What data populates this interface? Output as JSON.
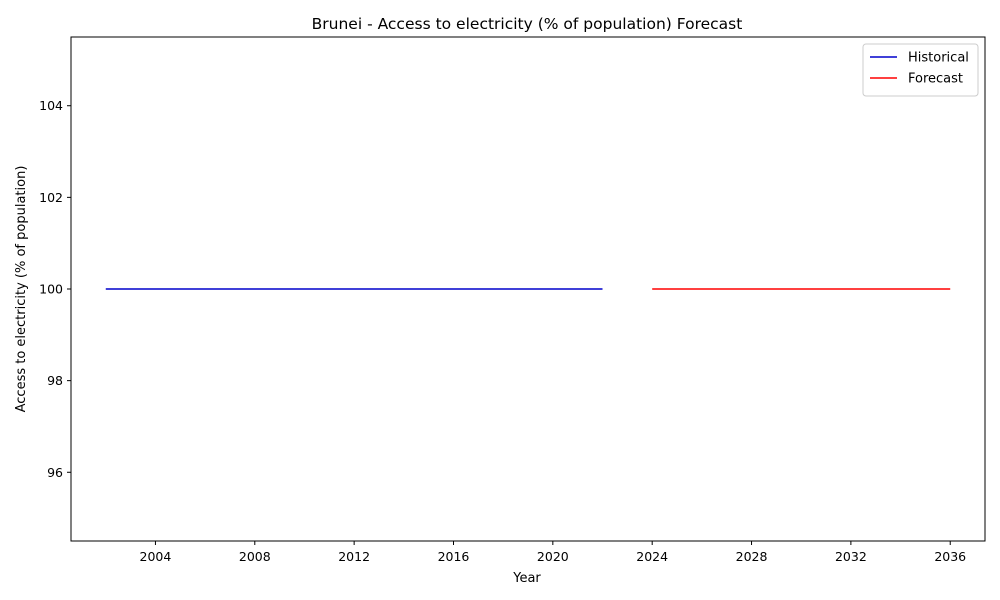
{
  "chart_data": {
    "type": "line",
    "title": "Brunei - Access to electricity (% of population) Forecast",
    "xlabel": "Year",
    "ylabel": "Access to electricity (% of population)",
    "xlim": [
      2000.6,
      2037.4
    ],
    "ylim": [
      94.5,
      105.5
    ],
    "xticks": [
      2004,
      2008,
      2012,
      2016,
      2020,
      2024,
      2028,
      2032,
      2036
    ],
    "yticks": [
      96,
      98,
      100,
      102,
      104
    ],
    "grid": false,
    "legend": "top-right",
    "series": [
      {
        "name": "Historical",
        "color": "#0000cc",
        "x": [
          2002,
          2003,
          2004,
          2005,
          2006,
          2007,
          2008,
          2009,
          2010,
          2011,
          2012,
          2013,
          2014,
          2015,
          2016,
          2017,
          2018,
          2019,
          2020,
          2021,
          2022
        ],
        "y": [
          100,
          100,
          100,
          100,
          100,
          100,
          100,
          100,
          100,
          100,
          100,
          100,
          100,
          100,
          100,
          100,
          100,
          100,
          100,
          100,
          100
        ]
      },
      {
        "name": "Forecast",
        "color": "#ff0000",
        "x": [
          2024,
          2025,
          2026,
          2027,
          2028,
          2029,
          2030,
          2031,
          2032,
          2033,
          2034,
          2035,
          2036
        ],
        "y": [
          100,
          100,
          100,
          100,
          100,
          100,
          100,
          100,
          100,
          100,
          100,
          100,
          100
        ]
      }
    ]
  }
}
